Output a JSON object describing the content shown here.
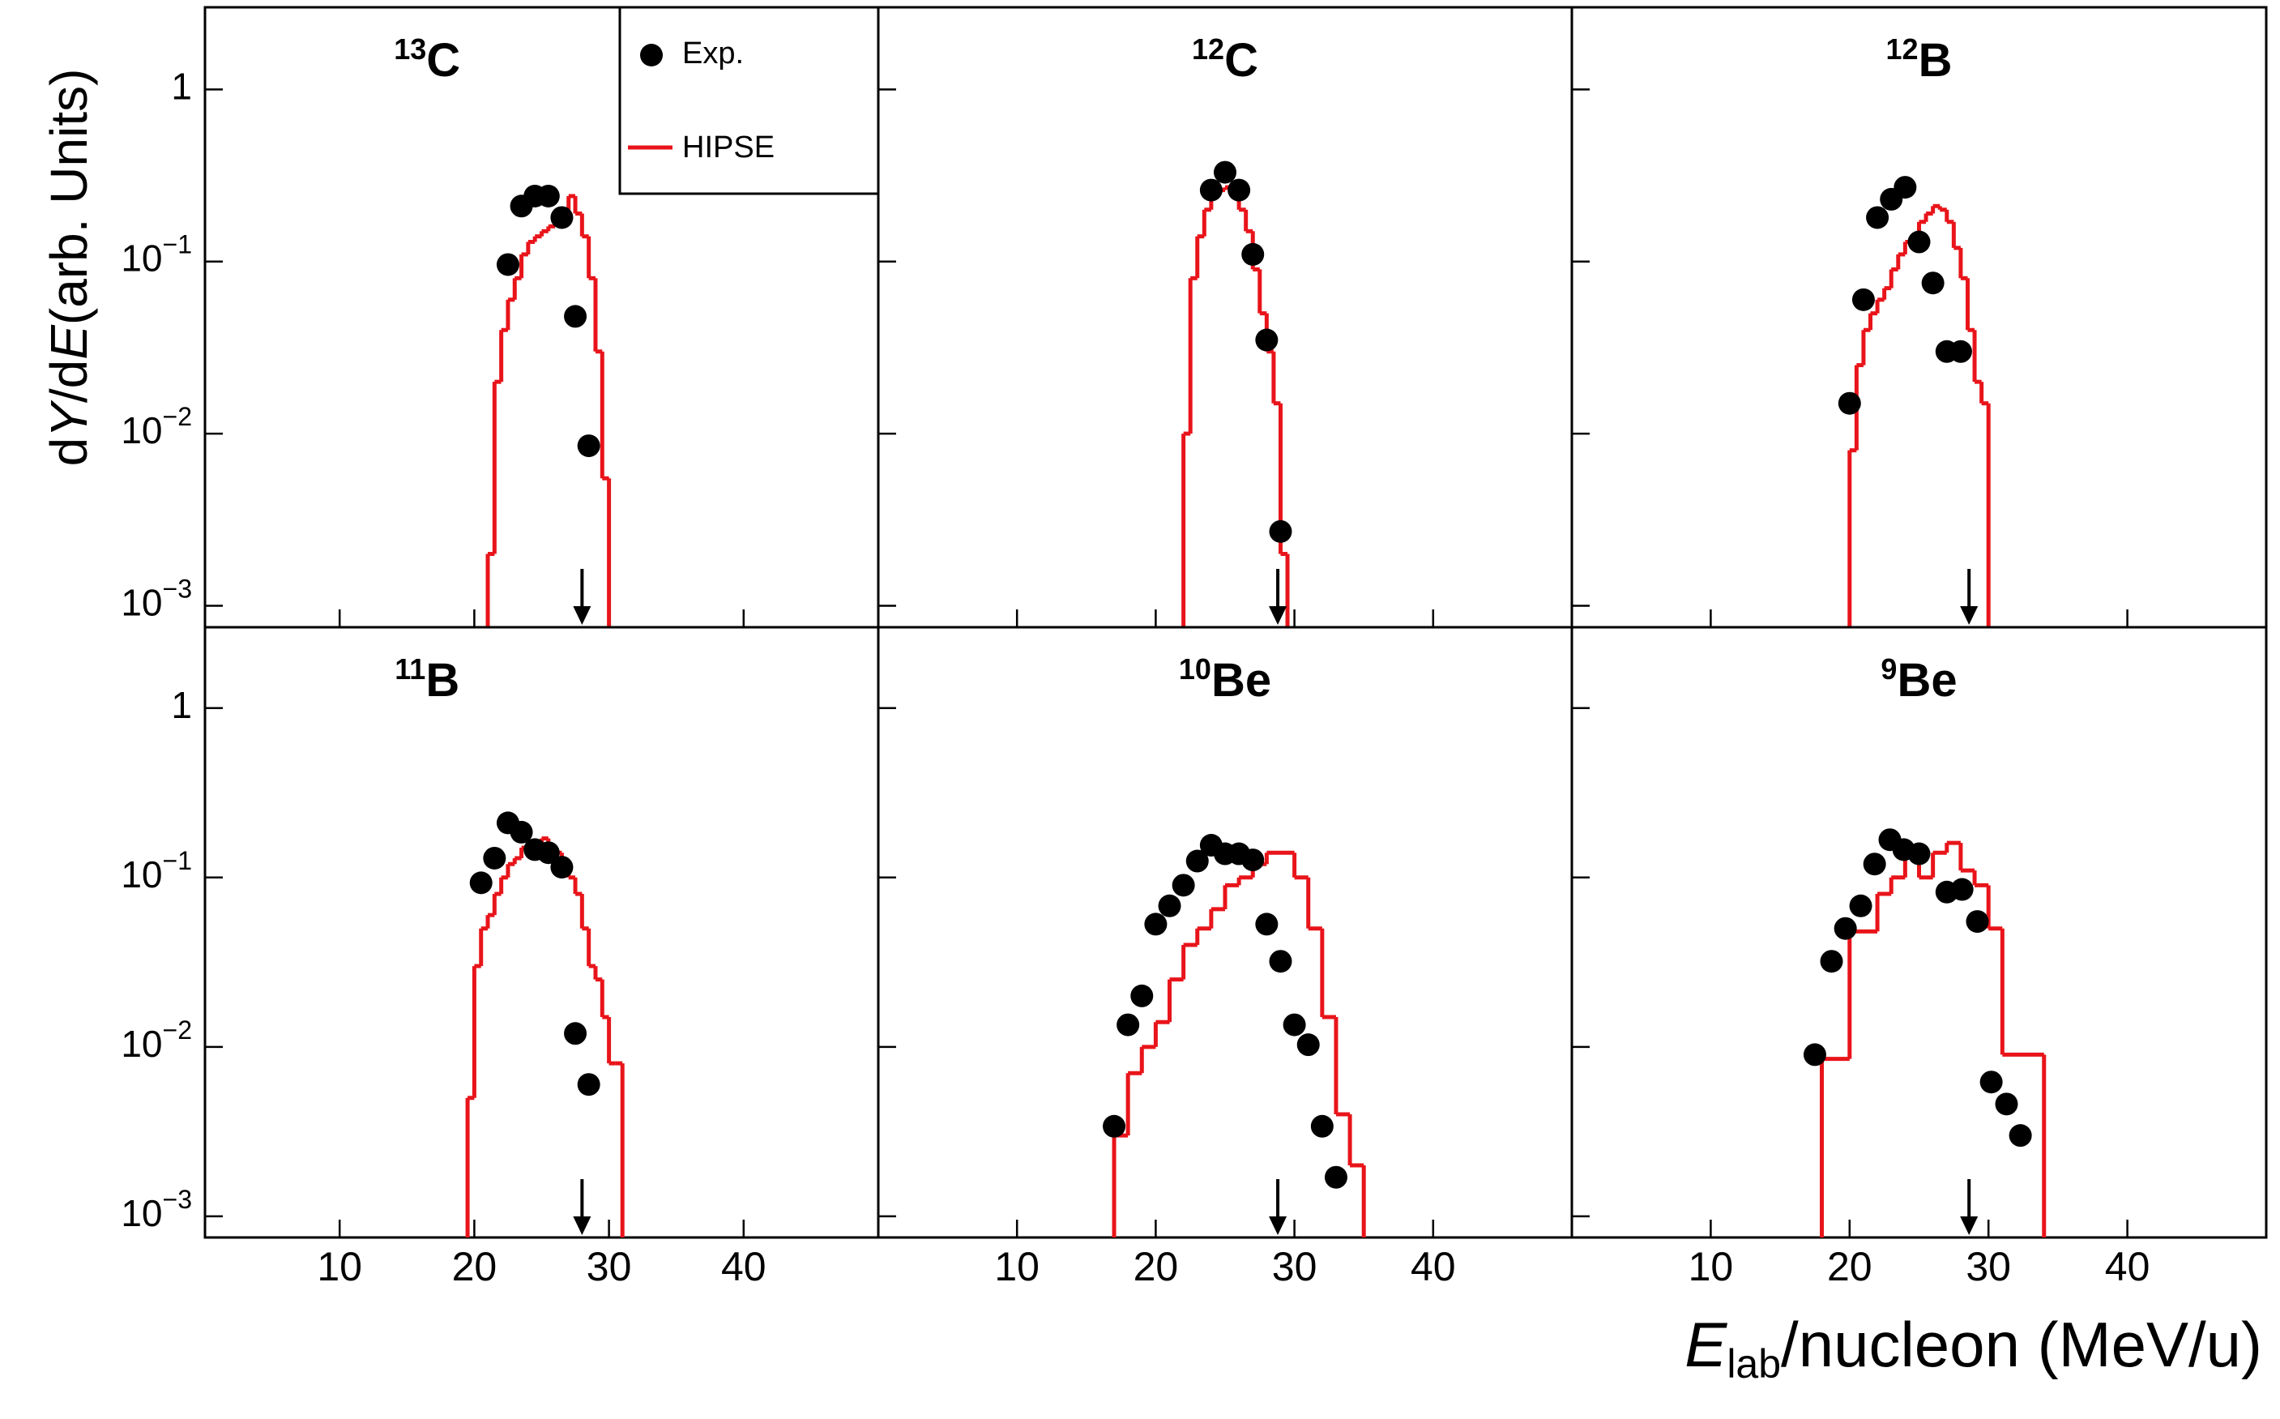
{
  "ylabel": [
    "d",
    "Y",
    "/d",
    "E",
    "(arb. Units)"
  ],
  "xlabel": [
    "E",
    "lab",
    "/nucleon (MeV/u)"
  ],
  "chart_data": [
    {
      "type": "scatter",
      "mass": "13",
      "element": "C",
      "xlim": [
        0,
        50
      ],
      "ylim": [
        0.00075,
        3
      ],
      "log_y": true,
      "xticks": [
        10,
        20,
        30,
        40
      ],
      "yticks": [
        {
          "value": 0.001,
          "label": "10",
          "exponent": "−3"
        },
        {
          "value": 0.01,
          "label": "10",
          "exponent": "−2"
        },
        {
          "value": 0.1,
          "label": "10",
          "exponent": "−1"
        },
        1
      ],
      "arrow_x": 28,
      "series": [
        {
          "name": "Exp.",
          "color": "#000000",
          "x": [
            22.5,
            23.5,
            24.5,
            25.5,
            26.5,
            27.5,
            28.5
          ],
          "values": [
            0.096,
            0.21,
            0.24,
            0.24,
            0.18,
            0.048,
            0.0085
          ]
        },
        {
          "name": "HIPSE",
          "color": "#e8141a",
          "bins": [
            21,
            21.5,
            22,
            22.5,
            23,
            23.5,
            24,
            24.5,
            25,
            25.5,
            26,
            26.5,
            27,
            27.5,
            28,
            28.5,
            29,
            29.5,
            30
          ],
          "values": [
            0.002,
            0.02,
            0.04,
            0.06,
            0.08,
            0.11,
            0.13,
            0.14,
            0.15,
            0.16,
            0.18,
            0.2,
            0.24,
            0.19,
            0.14,
            0.08,
            0.03,
            0.0055
          ]
        }
      ]
    },
    {
      "type": "scatter",
      "mass": "12",
      "element": "C",
      "xlim": [
        0,
        50
      ],
      "ylim": [
        0.00075,
        3
      ],
      "log_y": true,
      "xticks": [
        10,
        20,
        30,
        40
      ],
      "yticks": [
        0.001,
        0.01,
        0.1,
        1
      ],
      "arrow_x": 28.8,
      "series": [
        {
          "color": "#000000",
          "x": [
            24,
            25,
            26,
            27,
            28,
            29
          ],
          "values": [
            0.26,
            0.33,
            0.26,
            0.11,
            0.035,
            0.0027
          ]
        },
        {
          "color": "#e8141a",
          "bins": [
            22,
            22.5,
            23,
            23.5,
            24,
            24.5,
            25,
            25.5,
            26,
            26.5,
            27,
            27.5,
            28,
            28.5,
            29,
            29.5
          ],
          "values": [
            0.01,
            0.08,
            0.14,
            0.2,
            0.24,
            0.26,
            0.27,
            0.25,
            0.2,
            0.15,
            0.09,
            0.05,
            0.03,
            0.015,
            0.002
          ]
        }
      ]
    },
    {
      "type": "scatter",
      "mass": "12",
      "element": "B",
      "xlim": [
        0,
        50
      ],
      "ylim": [
        0.00075,
        3
      ],
      "log_y": true,
      "xticks": [
        10,
        20,
        30,
        40
      ],
      "yticks": [
        0.001,
        0.01,
        0.1,
        1
      ],
      "arrow_x": 28.6,
      "series": [
        {
          "color": "#000000",
          "x": [
            20,
            21,
            22,
            23,
            24,
            25,
            26,
            27,
            28
          ],
          "values": [
            0.015,
            0.06,
            0.18,
            0.23,
            0.27,
            0.13,
            0.075,
            0.03,
            0.03
          ]
        },
        {
          "color": "#e8141a",
          "bins": [
            20,
            20.5,
            21,
            21.5,
            22,
            22.5,
            23,
            23.5,
            24,
            24.5,
            25,
            25.5,
            26,
            26.5,
            27,
            27.5,
            28,
            28.5,
            29,
            29.5,
            30
          ],
          "values": [
            0.008,
            0.025,
            0.04,
            0.05,
            0.06,
            0.07,
            0.09,
            0.11,
            0.13,
            0.14,
            0.17,
            0.19,
            0.21,
            0.2,
            0.17,
            0.12,
            0.08,
            0.04,
            0.02,
            0.015
          ]
        }
      ]
    },
    {
      "type": "scatter",
      "mass": "11",
      "element": "B",
      "xlim": [
        0,
        50
      ],
      "ylim": [
        0.00075,
        3
      ],
      "log_y": true,
      "xticks": [
        10,
        20,
        30,
        40
      ],
      "yticks": [
        {
          "value": 0.001,
          "label": "10",
          "exponent": "−3"
        },
        {
          "value": 0.01,
          "label": "10",
          "exponent": "−2"
        },
        {
          "value": 0.1,
          "label": "10",
          "exponent": "−1"
        },
        1
      ],
      "arrow_x": 28,
      "series": [
        {
          "color": "#000000",
          "x": [
            20.5,
            21.5,
            22.5,
            23.5,
            24.5,
            25.5,
            26.5,
            27.5,
            28.5
          ],
          "values": [
            0.093,
            0.13,
            0.21,
            0.185,
            0.146,
            0.14,
            0.115,
            0.012,
            0.006
          ]
        },
        {
          "color": "#e8141a",
          "bins": [
            19.5,
            20,
            20.5,
            21,
            21.5,
            22,
            22.5,
            23,
            23.5,
            24,
            24.5,
            25,
            25.5,
            26,
            26.5,
            27,
            27.5,
            28,
            28.5,
            29,
            29.5,
            30,
            30.5,
            31
          ],
          "values": [
            0.005,
            0.03,
            0.05,
            0.06,
            0.08,
            0.1,
            0.12,
            0.13,
            0.15,
            0.14,
            0.16,
            0.17,
            0.15,
            0.14,
            0.12,
            0.1,
            0.08,
            0.05,
            0.03,
            0.025,
            0.015,
            0.008,
            0.008
          ]
        }
      ]
    },
    {
      "type": "scatter",
      "mass": "10",
      "element": "Be",
      "xlim": [
        0,
        50
      ],
      "ylim": [
        0.00075,
        3
      ],
      "log_y": true,
      "xticks": [
        10,
        20,
        30,
        40
      ],
      "yticks": [
        0.001,
        0.01,
        0.1,
        1
      ],
      "arrow_x": 28.8,
      "series": [
        {
          "color": "#000000",
          "x": [
            17,
            18,
            19,
            20,
            21,
            22,
            23,
            24,
            25,
            26,
            27,
            28,
            29,
            30,
            31,
            32,
            33
          ],
          "values": [
            0.0034,
            0.0135,
            0.02,
            0.053,
            0.068,
            0.09,
            0.125,
            0.155,
            0.138,
            0.138,
            0.127,
            0.053,
            0.032,
            0.0135,
            0.0103,
            0.0034,
            0.0017
          ]
        },
        {
          "color": "#e8141a",
          "bins": [
            17,
            18,
            19,
            20,
            21,
            22,
            23,
            24,
            25,
            26,
            27,
            28,
            29,
            30,
            31,
            32,
            33,
            34,
            35
          ],
          "values": [
            0.003,
            0.007,
            0.01,
            0.014,
            0.025,
            0.04,
            0.05,
            0.065,
            0.09,
            0.1,
            0.12,
            0.14,
            0.14,
            0.1,
            0.05,
            0.015,
            0.004,
            0.002
          ]
        }
      ]
    },
    {
      "type": "scatter",
      "mass": "9",
      "element": "Be",
      "xlim": [
        0,
        50
      ],
      "ylim": [
        0.00075,
        3
      ],
      "log_y": true,
      "xticks": [
        10,
        20,
        30,
        40
      ],
      "yticks": [
        0.001,
        0.01,
        0.1,
        1
      ],
      "arrow_x": 28.6,
      "series": [
        {
          "color": "#000000",
          "x": [
            17.5,
            18.7,
            19.7,
            20.8,
            21.8,
            22.9,
            23.9,
            25,
            27,
            28.1,
            29.2,
            30.2,
            31.3,
            32.3
          ],
          "values": [
            0.009,
            0.032,
            0.05,
            0.068,
            0.12,
            0.167,
            0.146,
            0.138,
            0.082,
            0.085,
            0.055,
            0.0062,
            0.0046,
            0.003
          ]
        },
        {
          "color": "#e8141a",
          "bins": [
            18,
            20,
            22,
            23,
            24,
            25,
            26,
            27,
            28,
            29,
            30,
            31,
            32,
            34
          ],
          "values": [
            0.0085,
            0.048,
            0.08,
            0.1,
            0.14,
            0.1,
            0.14,
            0.16,
            0.11,
            0.09,
            0.05,
            0.009,
            0.009
          ]
        }
      ]
    }
  ]
}
